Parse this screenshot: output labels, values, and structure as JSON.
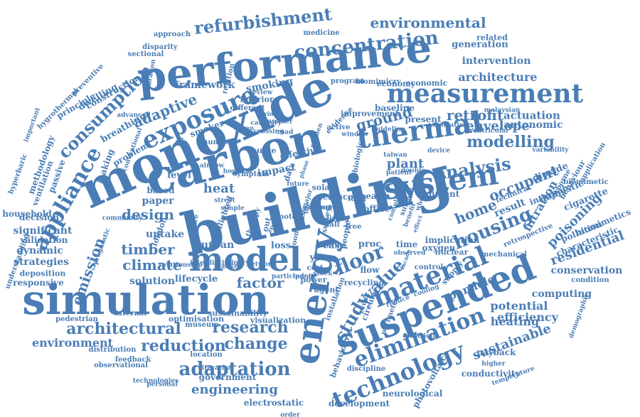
{
  "colors": {
    "word": "#4a7db5",
    "background": "#ffffff"
  },
  "words": [
    {
      "text": "building"
    },
    {
      "text": "simulation"
    },
    {
      "text": "monoxide"
    },
    {
      "text": "performance"
    },
    {
      "text": "carbon"
    },
    {
      "text": "energy"
    },
    {
      "text": "suspended"
    },
    {
      "text": "measurement"
    },
    {
      "text": "thermal"
    },
    {
      "text": "exposure"
    },
    {
      "text": "model"
    },
    {
      "text": "system"
    },
    {
      "text": "material"
    },
    {
      "text": "appliance"
    },
    {
      "text": "technology"
    },
    {
      "text": "elimination"
    },
    {
      "text": "refurbishment"
    },
    {
      "text": "concentration"
    },
    {
      "text": "adaptation"
    },
    {
      "text": "research"
    },
    {
      "text": "architectural"
    },
    {
      "text": "reduction"
    },
    {
      "text": "change"
    },
    {
      "text": "floor"
    },
    {
      "text": "value"
    },
    {
      "text": "study"
    },
    {
      "text": "consumption"
    },
    {
      "text": "environmental"
    },
    {
      "text": "adaptive"
    },
    {
      "text": "ground"
    },
    {
      "text": "analysis"
    },
    {
      "text": "modelling"
    },
    {
      "text": "envelope"
    },
    {
      "text": "retrofit"
    },
    {
      "text": "housing"
    },
    {
      "text": "occupant"
    },
    {
      "text": "emission"
    },
    {
      "text": "design"
    },
    {
      "text": "timber"
    },
    {
      "text": "climate"
    },
    {
      "text": "factor"
    },
    {
      "text": "engineering"
    },
    {
      "text": "environment"
    },
    {
      "text": "sustainable"
    },
    {
      "text": "heat"
    },
    {
      "text": "plant"
    },
    {
      "text": "home"
    },
    {
      "text": "particle"
    },
    {
      "text": "filtration"
    },
    {
      "text": "poisoning"
    },
    {
      "text": "efficiency"
    },
    {
      "text": "heating"
    },
    {
      "text": "potential"
    },
    {
      "text": "computing"
    },
    {
      "text": "residential"
    },
    {
      "text": "conservation"
    },
    {
      "text": "actuation"
    },
    {
      "text": "autonomic"
    },
    {
      "text": "intervention"
    },
    {
      "text": "architecture"
    },
    {
      "text": "generation"
    },
    {
      "text": "significant"
    },
    {
      "text": "dynamic"
    },
    {
      "text": "strategies"
    },
    {
      "text": "uptake"
    },
    {
      "text": "paper"
    },
    {
      "text": "solution"
    },
    {
      "text": "urban"
    },
    {
      "text": "lifecycle"
    },
    {
      "text": "methodology"
    },
    {
      "text": "ventilation"
    },
    {
      "text": "passive"
    },
    {
      "text": "decision"
    },
    {
      "text": "household"
    },
    {
      "text": "validation"
    },
    {
      "text": "deposition"
    },
    {
      "text": "responsive"
    },
    {
      "text": "pedestrian"
    },
    {
      "text": "distribution"
    },
    {
      "text": "feedback"
    },
    {
      "text": "observational"
    },
    {
      "text": "technologies"
    },
    {
      "text": "government"
    },
    {
      "text": "electrostatic"
    },
    {
      "text": "discipline"
    },
    {
      "text": "development"
    },
    {
      "text": "photovoltaic"
    },
    {
      "text": "neurological"
    },
    {
      "text": "conductivity"
    },
    {
      "text": "payback"
    },
    {
      "text": "result"
    },
    {
      "text": "internal"
    },
    {
      "text": "domestic"
    },
    {
      "text": "pollution"
    },
    {
      "text": "biomimetics"
    },
    {
      "text": "characteristic"
    },
    {
      "text": "condition"
    },
    {
      "text": "implication"
    },
    {
      "text": "nuclear"
    },
    {
      "text": "oxygen"
    },
    {
      "text": "dioxide"
    },
    {
      "text": "cigarette"
    },
    {
      "text": "behaviour"
    },
    {
      "text": "biomimetic"
    },
    {
      "text": "application"
    },
    {
      "text": "framework"
    },
    {
      "text": "smoking"
    },
    {
      "text": "dwelling"
    },
    {
      "text": "construction"
    },
    {
      "text": "principle"
    },
    {
      "text": "breathing"
    },
    {
      "text": "problem"
    },
    {
      "text": "making"
    },
    {
      "text": "impact"
    },
    {
      "text": "effective"
    },
    {
      "text": "level"
    },
    {
      "text": "based"
    },
    {
      "text": "london"
    },
    {
      "text": "smoker"
    },
    {
      "text": "source"
    },
    {
      "text": "current"
    },
    {
      "text": "health"
    },
    {
      "text": "science"
    },
    {
      "text": "solar"
    },
    {
      "text": "data"
    },
    {
      "text": "loss"
    },
    {
      "text": "case"
    },
    {
      "text": "proc"
    },
    {
      "text": "time"
    },
    {
      "text": "year"
    },
    {
      "text": "power"
    },
    {
      "text": "agent"
    },
    {
      "text": "cost"
    },
    {
      "text": "flow"
    },
    {
      "text": "control"
    },
    {
      "text": "supply"
    },
    {
      "text": "office"
    },
    {
      "text": "baseline"
    },
    {
      "text": "present"
    },
    {
      "text": "related"
    },
    {
      "text": "economy"
    },
    {
      "text": "economic"
    },
    {
      "text": "biomimicry"
    },
    {
      "text": "program"
    },
    {
      "text": "medicine"
    },
    {
      "text": "disparity"
    },
    {
      "text": "approach"
    },
    {
      "text": "sectional"
    },
    {
      "text": "calibration"
    },
    {
      "text": "hygrothermal"
    },
    {
      "text": "preventive"
    },
    {
      "text": "important"
    },
    {
      "text": "hyperbaric"
    },
    {
      "text": "understanding"
    },
    {
      "text": "prognostic"
    },
    {
      "text": "sustainability"
    },
    {
      "text": "visualization"
    },
    {
      "text": "optimisation"
    },
    {
      "text": "museum"
    },
    {
      "text": "external"
    },
    {
      "text": "location"
    },
    {
      "text": "iterative"
    },
    {
      "text": "behavioural"
    },
    {
      "text": "installation"
    },
    {
      "text": "circular"
    },
    {
      "text": "reduce"
    },
    {
      "text": "cooling"
    },
    {
      "text": "perimeter"
    },
    {
      "text": "electricity"
    },
    {
      "text": "higher"
    },
    {
      "text": "temperature"
    },
    {
      "text": "demographic"
    },
    {
      "text": "retrospective"
    },
    {
      "text": "mechanical"
    },
    {
      "text": "technical"
    },
    {
      "text": "airborne"
    },
    {
      "text": "variability"
    },
    {
      "text": "ventricular"
    },
    {
      "text": "malaysian"
    },
    {
      "text": "association"
    },
    {
      "text": "improvement"
    },
    {
      "text": "evidence"
    },
    {
      "text": "interior"
    },
    {
      "text": "review"
    },
    {
      "text": "relation"
    },
    {
      "text": "different"
    },
    {
      "text": "advanced"
    },
    {
      "text": "conventional"
    },
    {
      "text": "number"
    },
    {
      "text": "highlighted"
    },
    {
      "text": "therapy"
    },
    {
      "text": "symptom"
    },
    {
      "text": "active"
    },
    {
      "text": "recycling"
    },
    {
      "text": "cross"
    },
    {
      "text": "order"
    },
    {
      "text": "personal"
    },
    {
      "text": "interdisciplinary"
    },
    {
      "text": "relationship"
    },
    {
      "text": "community"
    },
    {
      "text": "blanket"
    },
    {
      "text": "participant"
    },
    {
      "text": "observed"
    },
    {
      "text": "facade"
    },
    {
      "text": "people"
    },
    {
      "text": "survey"
    },
    {
      "text": "living"
    },
    {
      "text": "half"
    },
    {
      "text": "total"
    },
    {
      "text": "more"
    },
    {
      "text": "tree"
    },
    {
      "text": "out"
    },
    {
      "text": "mass"
    },
    {
      "text": "moto"
    },
    {
      "text": "life"
    },
    {
      "text": "future"
    },
    {
      "text": "room"
    },
    {
      "text": "zone"
    },
    {
      "text": "space"
    },
    {
      "text": "network"
    },
    {
      "text": "indoor"
    },
    {
      "text": "stock"
    },
    {
      "text": "major"
    },
    {
      "text": "phase"
    },
    {
      "text": "road"
    },
    {
      "text": "window"
    },
    {
      "text": "taiwan"
    },
    {
      "text": "patient"
    },
    {
      "text": "double"
    },
    {
      "text": "complex"
    },
    {
      "text": "surface"
    },
    {
      "text": "benefit"
    },
    {
      "text": "device"
    },
    {
      "text": "whole"
    },
    {
      "text": "effect"
    },
    {
      "text": "guideline"
    },
    {
      "text": "biological"
    },
    {
      "text": "summer"
    },
    {
      "text": "category"
    },
    {
      "text": "crossing"
    },
    {
      "text": "airflow"
    },
    {
      "text": "hospital"
    },
    {
      "text": "street"
    },
    {
      "text": "simple"
    },
    {
      "text": "sudden"
    },
    {
      "text": "driven"
    },
    {
      "text": "winter"
    },
    {
      "text": "floor"
    },
    {
      "text": "average"
    },
    {
      "text": "cohort"
    }
  ]
}
